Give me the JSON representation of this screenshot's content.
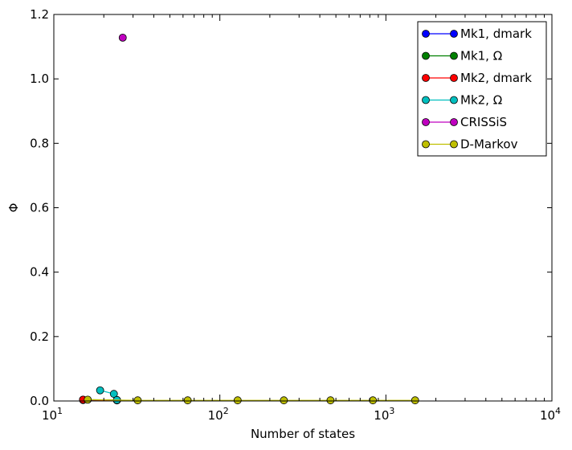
{
  "chart_data": {
    "type": "line",
    "title": "",
    "xlabel": "Number of states",
    "ylabel": "Φ",
    "xscale": "log",
    "xlim": [
      10,
      10000
    ],
    "ylim": [
      0,
      1.2
    ],
    "grid": false,
    "legend_position": "top-right",
    "x_tick_labels": [
      {
        "value": 10,
        "base": "10",
        "exp": "1"
      },
      {
        "value": 100,
        "base": "10",
        "exp": "2"
      },
      {
        "value": 1000,
        "base": "10",
        "exp": "3"
      },
      {
        "value": 10000,
        "base": "10",
        "exp": "4"
      }
    ],
    "y_tick_labels": [
      {
        "value": 0.0,
        "label": "0.0"
      },
      {
        "value": 0.2,
        "label": "0.2"
      },
      {
        "value": 0.4,
        "label": "0.4"
      },
      {
        "value": 0.6,
        "label": "0.6"
      },
      {
        "value": 0.8,
        "label": "0.8"
      },
      {
        "value": 1.0,
        "label": "1.0"
      },
      {
        "value": 1.2,
        "label": "1.2"
      }
    ],
    "series": [
      {
        "name": "Mk1, dmark",
        "color": "#0000ff",
        "points": [
          [
            15,
            0.003
          ],
          [
            24,
            0.002
          ]
        ]
      },
      {
        "name": "Mk1, Ω",
        "color": "#008000",
        "points": [
          [
            15,
            0.004
          ],
          [
            24,
            0.003
          ]
        ]
      },
      {
        "name": "Mk2, dmark",
        "color": "#ff0000",
        "points": [
          [
            15,
            0.004
          ],
          [
            24,
            0.002
          ]
        ]
      },
      {
        "name": "Mk2, Ω",
        "color": "#00bfbf",
        "points": [
          [
            19,
            0.033
          ],
          [
            23,
            0.022
          ],
          [
            24,
            0.003
          ]
        ]
      },
      {
        "name": "CRISSiS",
        "color": "#bf00bf",
        "points": [
          [
            26,
            1.128
          ]
        ]
      },
      {
        "name": "D-Markov",
        "color": "#bfbf00",
        "points": [
          [
            16,
            0.004
          ],
          [
            32,
            0.002
          ],
          [
            64,
            0.002
          ],
          [
            128,
            0.002
          ],
          [
            243,
            0.002
          ],
          [
            464,
            0.002
          ],
          [
            835,
            0.002
          ],
          [
            1500,
            0.002
          ]
        ]
      }
    ]
  }
}
